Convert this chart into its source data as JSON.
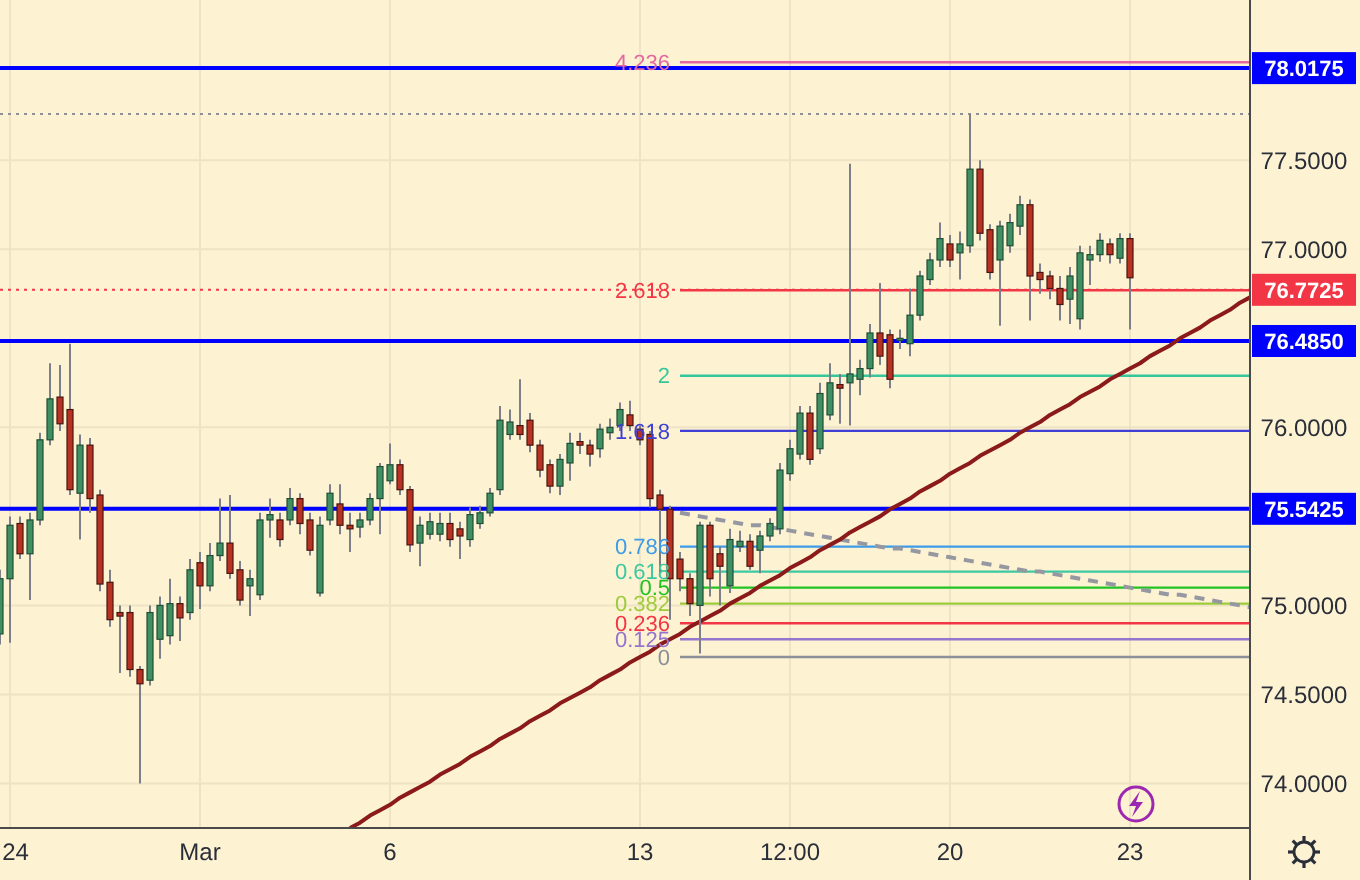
{
  "chart_data": {
    "type": "candlestick",
    "categories": [
      null,
      "24",
      null,
      null,
      null,
      null,
      null,
      null,
      null,
      null,
      null,
      null,
      null,
      null,
      null,
      null,
      null,
      null,
      null,
      null,
      "Mar",
      null,
      null,
      null,
      null,
      null,
      null,
      null,
      null,
      null,
      null,
      null,
      null,
      null,
      null,
      null,
      null,
      null,
      null,
      "6",
      null,
      null,
      null,
      null,
      null,
      null,
      null,
      null,
      null,
      null,
      null,
      null,
      null,
      null,
      null,
      null,
      null,
      null,
      null,
      null,
      null,
      null,
      null,
      null,
      "13",
      null,
      null,
      null,
      null,
      null,
      null,
      null,
      null,
      null,
      null,
      null,
      null,
      null,
      null,
      "12:00",
      null,
      null,
      null,
      null,
      null,
      null,
      null,
      null,
      null,
      null,
      null,
      null,
      null,
      null,
      null,
      "20",
      null,
      null,
      null,
      null,
      null,
      null,
      null,
      null,
      null,
      null,
      null,
      null,
      null,
      null,
      null,
      null,
      null,
      "23",
      null,
      null,
      null,
      null,
      null,
      null,
      null,
      null,
      null,
      null,
      null,
      null
    ],
    "ohlc": [
      [
        74.84,
        75.2,
        74.78,
        75.15
      ],
      [
        75.15,
        75.5,
        74.79,
        75.45
      ],
      [
        75.46,
        75.5,
        75.26,
        75.29
      ],
      [
        75.29,
        75.52,
        75.03,
        75.48
      ],
      [
        75.48,
        75.97,
        75.45,
        75.93
      ],
      [
        75.93,
        76.36,
        75.9,
        76.16
      ],
      [
        76.17,
        76.35,
        75.98,
        76.02
      ],
      [
        76.1,
        76.47,
        75.62,
        75.65
      ],
      [
        75.63,
        75.96,
        75.37,
        75.9
      ],
      [
        75.9,
        75.94,
        75.52,
        75.6
      ],
      [
        75.62,
        75.65,
        75.08,
        75.12
      ],
      [
        75.13,
        75.2,
        74.88,
        74.92
      ],
      [
        74.96,
        75.0,
        74.62,
        74.94
      ],
      [
        74.96,
        75.0,
        74.6,
        74.64
      ],
      [
        74.64,
        74.66,
        74.0,
        74.56
      ],
      [
        74.58,
        75.0,
        74.55,
        74.96
      ],
      [
        74.81,
        75.05,
        74.7,
        75.0
      ],
      [
        74.83,
        75.15,
        74.78,
        75.01
      ],
      [
        75.01,
        75.05,
        74.8,
        74.93
      ],
      [
        74.96,
        75.26,
        74.92,
        75.2
      ],
      [
        75.24,
        75.3,
        74.98,
        75.11
      ],
      [
        75.11,
        75.35,
        75.08,
        75.28
      ],
      [
        75.28,
        75.6,
        75.25,
        75.35
      ],
      [
        75.35,
        75.62,
        75.15,
        75.18
      ],
      [
        75.2,
        75.25,
        75.0,
        75.03
      ],
      [
        75.11,
        75.2,
        74.94,
        75.15
      ],
      [
        75.06,
        75.52,
        75.03,
        75.48
      ],
      [
        75.48,
        75.6,
        75.38,
        75.51
      ],
      [
        75.48,
        75.52,
        75.33,
        75.37
      ],
      [
        75.48,
        75.66,
        75.45,
        75.6
      ],
      [
        75.6,
        75.63,
        75.4,
        75.46
      ],
      [
        75.48,
        75.52,
        75.28,
        75.31
      ],
      [
        75.07,
        75.5,
        75.05,
        75.45
      ],
      [
        75.48,
        75.68,
        75.45,
        75.63
      ],
      [
        75.57,
        75.68,
        75.4,
        75.45
      ],
      [
        75.45,
        75.52,
        75.3,
        75.43
      ],
      [
        75.44,
        75.52,
        75.38,
        75.48
      ],
      [
        75.48,
        75.63,
        75.45,
        75.6
      ],
      [
        75.6,
        75.8,
        75.4,
        75.78
      ],
      [
        75.7,
        75.91,
        75.68,
        75.79
      ],
      [
        75.79,
        75.82,
        75.62,
        75.65
      ],
      [
        75.65,
        75.67,
        75.3,
        75.34
      ],
      [
        75.35,
        75.5,
        75.22,
        75.45
      ],
      [
        75.4,
        75.52,
        75.37,
        75.47
      ],
      [
        75.4,
        75.52,
        75.36,
        75.46
      ],
      [
        75.46,
        75.52,
        75.33,
        75.37
      ],
      [
        75.43,
        75.47,
        75.26,
        75.39
      ],
      [
        75.37,
        75.55,
        75.33,
        75.51
      ],
      [
        75.46,
        75.56,
        75.43,
        75.52
      ],
      [
        75.52,
        75.66,
        75.5,
        75.63
      ],
      [
        75.65,
        76.12,
        75.62,
        76.04
      ],
      [
        75.96,
        76.1,
        75.93,
        76.03
      ],
      [
        76.01,
        76.27,
        75.93,
        75.96
      ],
      [
        76.04,
        76.08,
        75.86,
        75.9
      ],
      [
        75.9,
        75.93,
        75.72,
        75.76
      ],
      [
        75.79,
        75.82,
        75.63,
        75.67
      ],
      [
        75.67,
        75.85,
        75.62,
        75.82
      ],
      [
        75.8,
        75.97,
        75.7,
        75.91
      ],
      [
        75.92,
        75.97,
        75.85,
        75.9
      ],
      [
        75.9,
        75.93,
        75.78,
        75.85
      ],
      [
        75.88,
        76.02,
        75.83,
        75.99
      ],
      [
        75.97,
        76.05,
        75.93,
        76.0
      ],
      [
        76.01,
        76.14,
        75.98,
        76.1
      ],
      [
        76.07,
        76.15,
        75.98,
        76.01
      ],
      [
        75.99,
        76.01,
        75.9,
        75.93
      ],
      [
        75.96,
        75.98,
        75.55,
        75.6
      ],
      [
        75.62,
        75.65,
        75.18,
        75.54
      ],
      [
        75.54,
        75.56,
        74.92,
        75.15
      ],
      [
        75.26,
        75.3,
        75.08,
        75.15
      ],
      [
        75.15,
        75.18,
        74.94,
        75.01
      ],
      [
        75.0,
        75.47,
        74.73,
        75.45
      ],
      [
        75.45,
        75.47,
        75.05,
        75.15
      ],
      [
        75.29,
        75.33,
        75.0,
        75.22
      ],
      [
        75.11,
        75.43,
        75.07,
        75.37
      ],
      [
        75.33,
        75.42,
        75.3,
        75.36
      ],
      [
        75.36,
        75.4,
        75.2,
        75.22
      ],
      [
        75.31,
        75.42,
        75.18,
        75.39
      ],
      [
        75.39,
        75.49,
        75.36,
        75.46
      ],
      [
        75.43,
        75.8,
        75.4,
        75.76
      ],
      [
        75.74,
        75.93,
        75.7,
        75.88
      ],
      [
        75.85,
        76.12,
        75.82,
        76.08
      ],
      [
        76.08,
        76.12,
        75.79,
        75.82
      ],
      [
        75.88,
        76.25,
        75.85,
        76.19
      ],
      [
        76.07,
        76.36,
        76.04,
        76.25
      ],
      [
        76.24,
        76.3,
        76.02,
        76.22
      ],
      [
        76.25,
        77.48,
        76.01,
        76.3
      ],
      [
        76.27,
        76.38,
        76.18,
        76.33
      ],
      [
        76.33,
        76.58,
        76.28,
        76.53
      ],
      [
        76.53,
        76.81,
        76.35,
        76.4
      ],
      [
        76.52,
        76.55,
        76.22,
        76.27
      ],
      [
        76.49,
        76.55,
        76.44,
        76.5
      ],
      [
        76.47,
        76.78,
        76.4,
        76.63
      ],
      [
        76.63,
        76.88,
        76.6,
        76.85
      ],
      [
        76.83,
        76.98,
        76.8,
        76.94
      ],
      [
        76.94,
        77.15,
        76.9,
        77.06
      ],
      [
        77.03,
        77.08,
        76.9,
        76.94
      ],
      [
        76.98,
        77.1,
        76.83,
        77.03
      ],
      [
        77.02,
        77.76,
        76.98,
        77.45
      ],
      [
        77.45,
        77.5,
        77.05,
        77.09
      ],
      [
        77.11,
        77.14,
        76.83,
        76.87
      ],
      [
        76.94,
        77.16,
        76.57,
        77.13
      ],
      [
        77.02,
        77.2,
        76.98,
        77.15
      ],
      [
        77.13,
        77.3,
        77.08,
        77.25
      ],
      [
        77.25,
        77.28,
        76.6,
        76.85
      ],
      [
        76.87,
        76.92,
        76.75,
        76.83
      ],
      [
        76.85,
        76.88,
        76.72,
        76.78
      ],
      [
        76.78,
        76.85,
        76.6,
        76.69
      ],
      [
        76.72,
        76.9,
        76.58,
        76.85
      ],
      [
        76.61,
        77.02,
        76.55,
        76.98
      ],
      [
        76.94,
        77.02,
        76.8,
        76.97
      ],
      [
        76.97,
        77.09,
        76.93,
        77.05
      ],
      [
        77.03,
        77.06,
        76.92,
        76.97
      ],
      [
        76.95,
        77.09,
        76.92,
        77.06
      ],
      [
        77.06,
        77.09,
        76.55,
        76.84
      ],
      null,
      null,
      null,
      null,
      null,
      null,
      null,
      null,
      null,
      null,
      null,
      null
    ],
    "ylim": [
      73.75,
      78.4
    ],
    "yticks": [
      {
        "value": 74,
        "label": "74.0000"
      },
      {
        "value": 74.5,
        "label": "74.5000"
      },
      {
        "value": 75,
        "label": "75.0000"
      },
      {
        "value": 76,
        "label": "76.0000"
      },
      {
        "value": 77,
        "label": "77.0000"
      },
      {
        "value": 77.5,
        "label": "77.5000"
      }
    ],
    "grid": true,
    "ref_lines": [
      {
        "axis": "y",
        "value": 77.76,
        "color": "#8e9099",
        "line_style": "dotted"
      },
      {
        "axis": "y",
        "value": 78.0175,
        "label": "78.0175",
        "color": "#0000ff"
      },
      {
        "axis": "y",
        "value": 76.7725,
        "label": "76.7725",
        "color": "#f23645",
        "line_style": "dotted"
      },
      {
        "axis": "y",
        "value": 76.485,
        "label": "76.4850",
        "color": "#0000ff"
      },
      {
        "axis": "y",
        "value": 75.5425,
        "label": "75.5425",
        "color": "#0000ff"
      }
    ],
    "series": [
      {
        "type": "line",
        "name": "4.236",
        "color": "#e26aa0",
        "values": [
          null,
          null,
          null,
          null,
          null,
          null,
          null,
          null,
          null,
          null,
          null,
          null,
          null,
          null,
          null,
          null,
          null,
          null,
          null,
          null,
          null,
          null,
          null,
          null,
          null,
          null,
          null,
          null,
          null,
          null,
          null,
          null,
          null,
          null,
          null,
          null,
          null,
          null,
          null,
          null,
          null,
          null,
          null,
          null,
          null,
          null,
          null,
          null,
          null,
          null,
          null,
          null,
          null,
          null,
          null,
          null,
          null,
          null,
          null,
          null,
          null,
          null,
          null,
          null,
          null,
          null,
          null,
          null,
          78.05,
          78.05,
          78.05,
          78.05,
          78.05,
          78.05,
          78.05,
          78.05,
          78.05,
          78.05,
          78.05,
          78.05,
          78.05,
          78.05,
          78.05,
          78.05,
          78.05,
          78.05,
          78.05,
          78.05,
          78.05,
          78.05,
          78.05,
          78.05,
          78.05,
          78.05,
          78.05,
          78.05,
          78.05,
          78.05,
          78.05,
          78.05,
          78.05,
          78.05,
          78.05,
          78.05,
          78.05,
          78.05,
          78.05,
          78.05,
          78.05,
          78.05,
          78.05,
          78.05,
          78.05,
          78.05,
          78.05,
          78.05,
          78.05,
          78.05,
          78.05,
          78.05,
          78.05,
          78.05,
          78.05,
          78.05,
          78.05,
          78.05
        ]
      },
      {
        "type": "line",
        "name": "2.618",
        "color": "#f23645",
        "values": [
          null,
          null,
          null,
          null,
          null,
          null,
          null,
          null,
          null,
          null,
          null,
          null,
          null,
          null,
          null,
          null,
          null,
          null,
          null,
          null,
          null,
          null,
          null,
          null,
          null,
          null,
          null,
          null,
          null,
          null,
          null,
          null,
          null,
          null,
          null,
          null,
          null,
          null,
          null,
          null,
          null,
          null,
          null,
          null,
          null,
          null,
          null,
          null,
          null,
          null,
          null,
          null,
          null,
          null,
          null,
          null,
          null,
          null,
          null,
          null,
          null,
          null,
          null,
          null,
          null,
          null,
          null,
          null,
          76.77,
          76.77,
          76.77,
          76.77,
          76.77,
          76.77,
          76.77,
          76.77,
          76.77,
          76.77,
          76.77,
          76.77,
          76.77,
          76.77,
          76.77,
          76.77,
          76.77,
          76.77,
          76.77,
          76.77,
          76.77,
          76.77,
          76.77,
          76.77,
          76.77,
          76.77,
          76.77,
          76.77,
          76.77,
          76.77,
          76.77,
          76.77,
          76.77,
          76.77,
          76.77,
          76.77,
          76.77,
          76.77,
          76.77,
          76.77,
          76.77,
          76.77,
          76.77,
          76.77,
          76.77,
          76.77,
          76.77,
          76.77,
          76.77,
          76.77,
          76.77,
          76.77,
          76.77,
          76.77,
          76.77,
          76.77,
          76.77,
          76.77
        ]
      },
      {
        "type": "line",
        "name": "2",
        "color": "#35c69b",
        "values": [
          null,
          null,
          null,
          null,
          null,
          null,
          null,
          null,
          null,
          null,
          null,
          null,
          null,
          null,
          null,
          null,
          null,
          null,
          null,
          null,
          null,
          null,
          null,
          null,
          null,
          null,
          null,
          null,
          null,
          null,
          null,
          null,
          null,
          null,
          null,
          null,
          null,
          null,
          null,
          null,
          null,
          null,
          null,
          null,
          null,
          null,
          null,
          null,
          null,
          null,
          null,
          null,
          null,
          null,
          null,
          null,
          null,
          null,
          null,
          null,
          null,
          null,
          null,
          null,
          null,
          null,
          null,
          null,
          76.29,
          76.29,
          76.29,
          76.29,
          76.29,
          76.29,
          76.29,
          76.29,
          76.29,
          76.29,
          76.29,
          76.29,
          76.29,
          76.29,
          76.29,
          76.29,
          76.29,
          76.29,
          76.29,
          76.29,
          76.29,
          76.29,
          76.29,
          76.29,
          76.29,
          76.29,
          76.29,
          76.29,
          76.29,
          76.29,
          76.29,
          76.29,
          76.29,
          76.29,
          76.29,
          76.29,
          76.29,
          76.29,
          76.29,
          76.29,
          76.29,
          76.29,
          76.29,
          76.29,
          76.29,
          76.29,
          76.29,
          76.29,
          76.29,
          76.29,
          76.29,
          76.29,
          76.29,
          76.29,
          76.29,
          76.29,
          76.29,
          76.29
        ]
      },
      {
        "type": "line",
        "name": "1.618",
        "color": "#3f3fd6",
        "values": [
          null,
          null,
          null,
          null,
          null,
          null,
          null,
          null,
          null,
          null,
          null,
          null,
          null,
          null,
          null,
          null,
          null,
          null,
          null,
          null,
          null,
          null,
          null,
          null,
          null,
          null,
          null,
          null,
          null,
          null,
          null,
          null,
          null,
          null,
          null,
          null,
          null,
          null,
          null,
          null,
          null,
          null,
          null,
          null,
          null,
          null,
          null,
          null,
          null,
          null,
          null,
          null,
          null,
          null,
          null,
          null,
          null,
          null,
          null,
          null,
          null,
          null,
          null,
          null,
          null,
          null,
          null,
          null,
          75.98,
          75.98,
          75.98,
          75.98,
          75.98,
          75.98,
          75.98,
          75.98,
          75.98,
          75.98,
          75.98,
          75.98,
          75.98,
          75.98,
          75.98,
          75.98,
          75.98,
          75.98,
          75.98,
          75.98,
          75.98,
          75.98,
          75.98,
          75.98,
          75.98,
          75.98,
          75.98,
          75.98,
          75.98,
          75.98,
          75.98,
          75.98,
          75.98,
          75.98,
          75.98,
          75.98,
          75.98,
          75.98,
          75.98,
          75.98,
          75.98,
          75.98,
          75.98,
          75.98,
          75.98,
          75.98,
          75.98,
          75.98,
          75.98,
          75.98,
          75.98,
          75.98,
          75.98,
          75.98,
          75.98,
          75.98,
          75.98,
          75.98
        ]
      },
      {
        "type": "line",
        "name": "0.786",
        "color": "#3d9be9",
        "values": [
          null,
          null,
          null,
          null,
          null,
          null,
          null,
          null,
          null,
          null,
          null,
          null,
          null,
          null,
          null,
          null,
          null,
          null,
          null,
          null,
          null,
          null,
          null,
          null,
          null,
          null,
          null,
          null,
          null,
          null,
          null,
          null,
          null,
          null,
          null,
          null,
          null,
          null,
          null,
          null,
          null,
          null,
          null,
          null,
          null,
          null,
          null,
          null,
          null,
          null,
          null,
          null,
          null,
          null,
          null,
          null,
          null,
          null,
          null,
          null,
          null,
          null,
          null,
          null,
          null,
          null,
          null,
          null,
          75.33,
          75.33,
          75.33,
          75.33,
          75.33,
          75.33,
          75.33,
          75.33,
          75.33,
          75.33,
          75.33,
          75.33,
          75.33,
          75.33,
          75.33,
          75.33,
          75.33,
          75.33,
          75.33,
          75.33,
          75.33,
          75.33,
          75.33,
          75.33,
          75.33,
          75.33,
          75.33,
          75.33,
          75.33,
          75.33,
          75.33,
          75.33,
          75.33,
          75.33,
          75.33,
          75.33,
          75.33,
          75.33,
          75.33,
          75.33,
          75.33,
          75.33,
          75.33,
          75.33,
          75.33,
          75.33,
          75.33,
          75.33,
          75.33,
          75.33,
          75.33,
          75.33,
          75.33,
          75.33,
          75.33,
          75.33,
          75.33,
          75.33
        ]
      },
      {
        "type": "line",
        "name": "0.618",
        "color": "#3cc8a0",
        "values": [
          null,
          null,
          null,
          null,
          null,
          null,
          null,
          null,
          null,
          null,
          null,
          null,
          null,
          null,
          null,
          null,
          null,
          null,
          null,
          null,
          null,
          null,
          null,
          null,
          null,
          null,
          null,
          null,
          null,
          null,
          null,
          null,
          null,
          null,
          null,
          null,
          null,
          null,
          null,
          null,
          null,
          null,
          null,
          null,
          null,
          null,
          null,
          null,
          null,
          null,
          null,
          null,
          null,
          null,
          null,
          null,
          null,
          null,
          null,
          null,
          null,
          null,
          null,
          null,
          null,
          null,
          null,
          null,
          75.19,
          75.19,
          75.19,
          75.19,
          75.19,
          75.19,
          75.19,
          75.19,
          75.19,
          75.19,
          75.19,
          75.19,
          75.19,
          75.19,
          75.19,
          75.19,
          75.19,
          75.19,
          75.19,
          75.19,
          75.19,
          75.19,
          75.19,
          75.19,
          75.19,
          75.19,
          75.19,
          75.19,
          75.19,
          75.19,
          75.19,
          75.19,
          75.19,
          75.19,
          75.19,
          75.19,
          75.19,
          75.19,
          75.19,
          75.19,
          75.19,
          75.19,
          75.19,
          75.19,
          75.19,
          75.19,
          75.19,
          75.19,
          75.19,
          75.19,
          75.19,
          75.19,
          75.19,
          75.19,
          75.19,
          75.19,
          75.19,
          75.19
        ]
      },
      {
        "type": "line",
        "name": "0.5",
        "color": "#22c322",
        "values": [
          null,
          null,
          null,
          null,
          null,
          null,
          null,
          null,
          null,
          null,
          null,
          null,
          null,
          null,
          null,
          null,
          null,
          null,
          null,
          null,
          null,
          null,
          null,
          null,
          null,
          null,
          null,
          null,
          null,
          null,
          null,
          null,
          null,
          null,
          null,
          null,
          null,
          null,
          null,
          null,
          null,
          null,
          null,
          null,
          null,
          null,
          null,
          null,
          null,
          null,
          null,
          null,
          null,
          null,
          null,
          null,
          null,
          null,
          null,
          null,
          null,
          null,
          null,
          null,
          null,
          null,
          null,
          null,
          75.1,
          75.1,
          75.1,
          75.1,
          75.1,
          75.1,
          75.1,
          75.1,
          75.1,
          75.1,
          75.1,
          75.1,
          75.1,
          75.1,
          75.1,
          75.1,
          75.1,
          75.1,
          75.1,
          75.1,
          75.1,
          75.1,
          75.1,
          75.1,
          75.1,
          75.1,
          75.1,
          75.1,
          75.1,
          75.1,
          75.1,
          75.1,
          75.1,
          75.1,
          75.1,
          75.1,
          75.1,
          75.1,
          75.1,
          75.1,
          75.1,
          75.1,
          75.1,
          75.1,
          75.1,
          75.1,
          75.1,
          75.1,
          75.1,
          75.1,
          75.1,
          75.1,
          75.1,
          75.1,
          75.1,
          75.1,
          75.1,
          75.1
        ]
      },
      {
        "type": "line",
        "name": "0.382",
        "color": "#9ccc3c",
        "values": [
          null,
          null,
          null,
          null,
          null,
          null,
          null,
          null,
          null,
          null,
          null,
          null,
          null,
          null,
          null,
          null,
          null,
          null,
          null,
          null,
          null,
          null,
          null,
          null,
          null,
          null,
          null,
          null,
          null,
          null,
          null,
          null,
          null,
          null,
          null,
          null,
          null,
          null,
          null,
          null,
          null,
          null,
          null,
          null,
          null,
          null,
          null,
          null,
          null,
          null,
          null,
          null,
          null,
          null,
          null,
          null,
          null,
          null,
          null,
          null,
          null,
          null,
          null,
          null,
          null,
          null,
          null,
          null,
          75.01,
          75.01,
          75.01,
          75.01,
          75.01,
          75.01,
          75.01,
          75.01,
          75.01,
          75.01,
          75.01,
          75.01,
          75.01,
          75.01,
          75.01,
          75.01,
          75.01,
          75.01,
          75.01,
          75.01,
          75.01,
          75.01,
          75.01,
          75.01,
          75.01,
          75.01,
          75.01,
          75.01,
          75.01,
          75.01,
          75.01,
          75.01,
          75.01,
          75.01,
          75.01,
          75.01,
          75.01,
          75.01,
          75.01,
          75.01,
          75.01,
          75.01,
          75.01,
          75.01,
          75.01,
          75.01,
          75.01,
          75.01,
          75.01,
          75.01,
          75.01,
          75.01,
          75.01,
          75.01,
          75.01,
          75.01,
          75.01,
          75.01
        ]
      },
      {
        "type": "line",
        "name": "0.236",
        "color": "#f23645",
        "values": [
          null,
          null,
          null,
          null,
          null,
          null,
          null,
          null,
          null,
          null,
          null,
          null,
          null,
          null,
          null,
          null,
          null,
          null,
          null,
          null,
          null,
          null,
          null,
          null,
          null,
          null,
          null,
          null,
          null,
          null,
          null,
          null,
          null,
          null,
          null,
          null,
          null,
          null,
          null,
          null,
          null,
          null,
          null,
          null,
          null,
          null,
          null,
          null,
          null,
          null,
          null,
          null,
          null,
          null,
          null,
          null,
          null,
          null,
          null,
          null,
          null,
          null,
          null,
          null,
          null,
          null,
          null,
          null,
          74.9,
          74.9,
          74.9,
          74.9,
          74.9,
          74.9,
          74.9,
          74.9,
          74.9,
          74.9,
          74.9,
          74.9,
          74.9,
          74.9,
          74.9,
          74.9,
          74.9,
          74.9,
          74.9,
          74.9,
          74.9,
          74.9,
          74.9,
          74.9,
          74.9,
          74.9,
          74.9,
          74.9,
          74.9,
          74.9,
          74.9,
          74.9,
          74.9,
          74.9,
          74.9,
          74.9,
          74.9,
          74.9,
          74.9,
          74.9,
          74.9,
          74.9,
          74.9,
          74.9,
          74.9,
          74.9,
          74.9,
          74.9,
          74.9,
          74.9,
          74.9,
          74.9,
          74.9,
          74.9,
          74.9,
          74.9,
          74.9,
          74.9
        ]
      },
      {
        "type": "line",
        "name": "0.125",
        "color": "#9575cd",
        "values": [
          null,
          null,
          null,
          null,
          null,
          null,
          null,
          null,
          null,
          null,
          null,
          null,
          null,
          null,
          null,
          null,
          null,
          null,
          null,
          null,
          null,
          null,
          null,
          null,
          null,
          null,
          null,
          null,
          null,
          null,
          null,
          null,
          null,
          null,
          null,
          null,
          null,
          null,
          null,
          null,
          null,
          null,
          null,
          null,
          null,
          null,
          null,
          null,
          null,
          null,
          null,
          null,
          null,
          null,
          null,
          null,
          null,
          null,
          null,
          null,
          null,
          null,
          null,
          null,
          null,
          null,
          null,
          null,
          74.81,
          74.81,
          74.81,
          74.81,
          74.81,
          74.81,
          74.81,
          74.81,
          74.81,
          74.81,
          74.81,
          74.81,
          74.81,
          74.81,
          74.81,
          74.81,
          74.81,
          74.81,
          74.81,
          74.81,
          74.81,
          74.81,
          74.81,
          74.81,
          74.81,
          74.81,
          74.81,
          74.81,
          74.81,
          74.81,
          74.81,
          74.81,
          74.81,
          74.81,
          74.81,
          74.81,
          74.81,
          74.81,
          74.81,
          74.81,
          74.81,
          74.81,
          74.81,
          74.81,
          74.81,
          74.81,
          74.81,
          74.81,
          74.81,
          74.81,
          74.81,
          74.81,
          74.81,
          74.81,
          74.81,
          74.81,
          74.81,
          74.81
        ]
      },
      {
        "type": "line",
        "name": "0",
        "color": "#8e9099",
        "values": [
          null,
          null,
          null,
          null,
          null,
          null,
          null,
          null,
          null,
          null,
          null,
          null,
          null,
          null,
          null,
          null,
          null,
          null,
          null,
          null,
          null,
          null,
          null,
          null,
          null,
          null,
          null,
          null,
          null,
          null,
          null,
          null,
          null,
          null,
          null,
          null,
          null,
          null,
          null,
          null,
          null,
          null,
          null,
          null,
          null,
          null,
          null,
          null,
          null,
          null,
          null,
          null,
          null,
          null,
          null,
          null,
          null,
          null,
          null,
          null,
          null,
          null,
          null,
          null,
          null,
          null,
          null,
          null,
          74.71,
          74.71,
          74.71,
          74.71,
          74.71,
          74.71,
          74.71,
          74.71,
          74.71,
          74.71,
          74.71,
          74.71,
          74.71,
          74.71,
          74.71,
          74.71,
          74.71,
          74.71,
          74.71,
          74.71,
          74.71,
          74.71,
          74.71,
          74.71,
          74.71,
          74.71,
          74.71,
          74.71,
          74.71,
          74.71,
          74.71,
          74.71,
          74.71,
          74.71,
          74.71,
          74.71,
          74.71,
          74.71,
          74.71,
          74.71,
          74.71,
          74.71,
          74.71,
          74.71,
          74.71,
          74.71,
          74.71,
          74.71,
          74.71,
          74.71,
          74.71,
          74.71,
          74.71,
          74.71,
          74.71,
          74.71,
          74.71,
          74.71
        ]
      },
      {
        "type": "line",
        "color": "#9598a1",
        "line_style": "dashed",
        "values": [
          null,
          null,
          null,
          null,
          null,
          null,
          null,
          null,
          null,
          null,
          null,
          null,
          null,
          null,
          null,
          null,
          null,
          null,
          null,
          null,
          null,
          null,
          null,
          null,
          null,
          null,
          null,
          null,
          null,
          null,
          null,
          null,
          null,
          null,
          null,
          null,
          null,
          null,
          null,
          null,
          null,
          null,
          null,
          null,
          null,
          null,
          null,
          null,
          null,
          null,
          null,
          null,
          null,
          null,
          null,
          null,
          null,
          null,
          null,
          null,
          null,
          null,
          null,
          null,
          null,
          null,
          null,
          null,
          75.52,
          75.51,
          75.5,
          75.49,
          75.48,
          75.47,
          75.46,
          75.45,
          75.45,
          75.44,
          75.43,
          75.42,
          75.41,
          75.4,
          75.39,
          75.38,
          75.37,
          75.36,
          75.35,
          75.34,
          75.33,
          75.32,
          75.32,
          75.31,
          75.3,
          75.29,
          75.28,
          75.27,
          75.26,
          75.25,
          75.24,
          75.23,
          75.22,
          75.21,
          75.2,
          75.19,
          75.19,
          75.18,
          75.17,
          75.16,
          75.15,
          75.14,
          75.13,
          75.12,
          75.11,
          75.1,
          75.09,
          75.08,
          75.07,
          75.06,
          75.06,
          75.05,
          75.04,
          75.03,
          75.02,
          75.01,
          75.0,
          74.99
        ]
      },
      {
        "type": "line",
        "color": "#8b1a1a",
        "values": [
          null,
          null,
          null,
          null,
          null,
          null,
          null,
          null,
          null,
          null,
          null,
          null,
          null,
          null,
          null,
          null,
          null,
          null,
          null,
          null,
          null,
          null,
          null,
          null,
          null,
          null,
          null,
          null,
          null,
          null,
          null,
          null,
          null,
          null,
          null,
          73.75,
          73.78,
          73.82,
          73.85,
          73.88,
          73.92,
          73.95,
          73.98,
          74.01,
          74.05,
          74.08,
          74.11,
          74.15,
          74.18,
          74.21,
          74.25,
          74.28,
          74.31,
          74.35,
          74.38,
          74.41,
          74.45,
          74.48,
          74.51,
          74.54,
          74.58,
          74.61,
          74.64,
          74.68,
          74.71,
          74.74,
          74.78,
          74.81,
          74.84,
          74.88,
          74.91,
          74.94,
          74.97,
          75.01,
          75.04,
          75.07,
          75.11,
          75.14,
          75.17,
          75.21,
          75.24,
          75.27,
          75.31,
          75.34,
          75.37,
          75.41,
          75.44,
          75.47,
          75.5,
          75.54,
          75.57,
          75.6,
          75.64,
          75.67,
          75.7,
          75.74,
          75.77,
          75.8,
          75.84,
          75.87,
          75.9,
          75.93,
          75.97,
          76.0,
          76.03,
          76.07,
          76.1,
          76.13,
          76.17,
          76.2,
          76.23,
          76.27,
          76.3,
          76.33,
          76.36,
          76.4,
          76.43,
          76.46,
          76.5,
          76.53,
          76.56,
          76.6,
          76.63,
          76.66,
          76.7,
          76.73
        ]
      }
    ]
  }
}
